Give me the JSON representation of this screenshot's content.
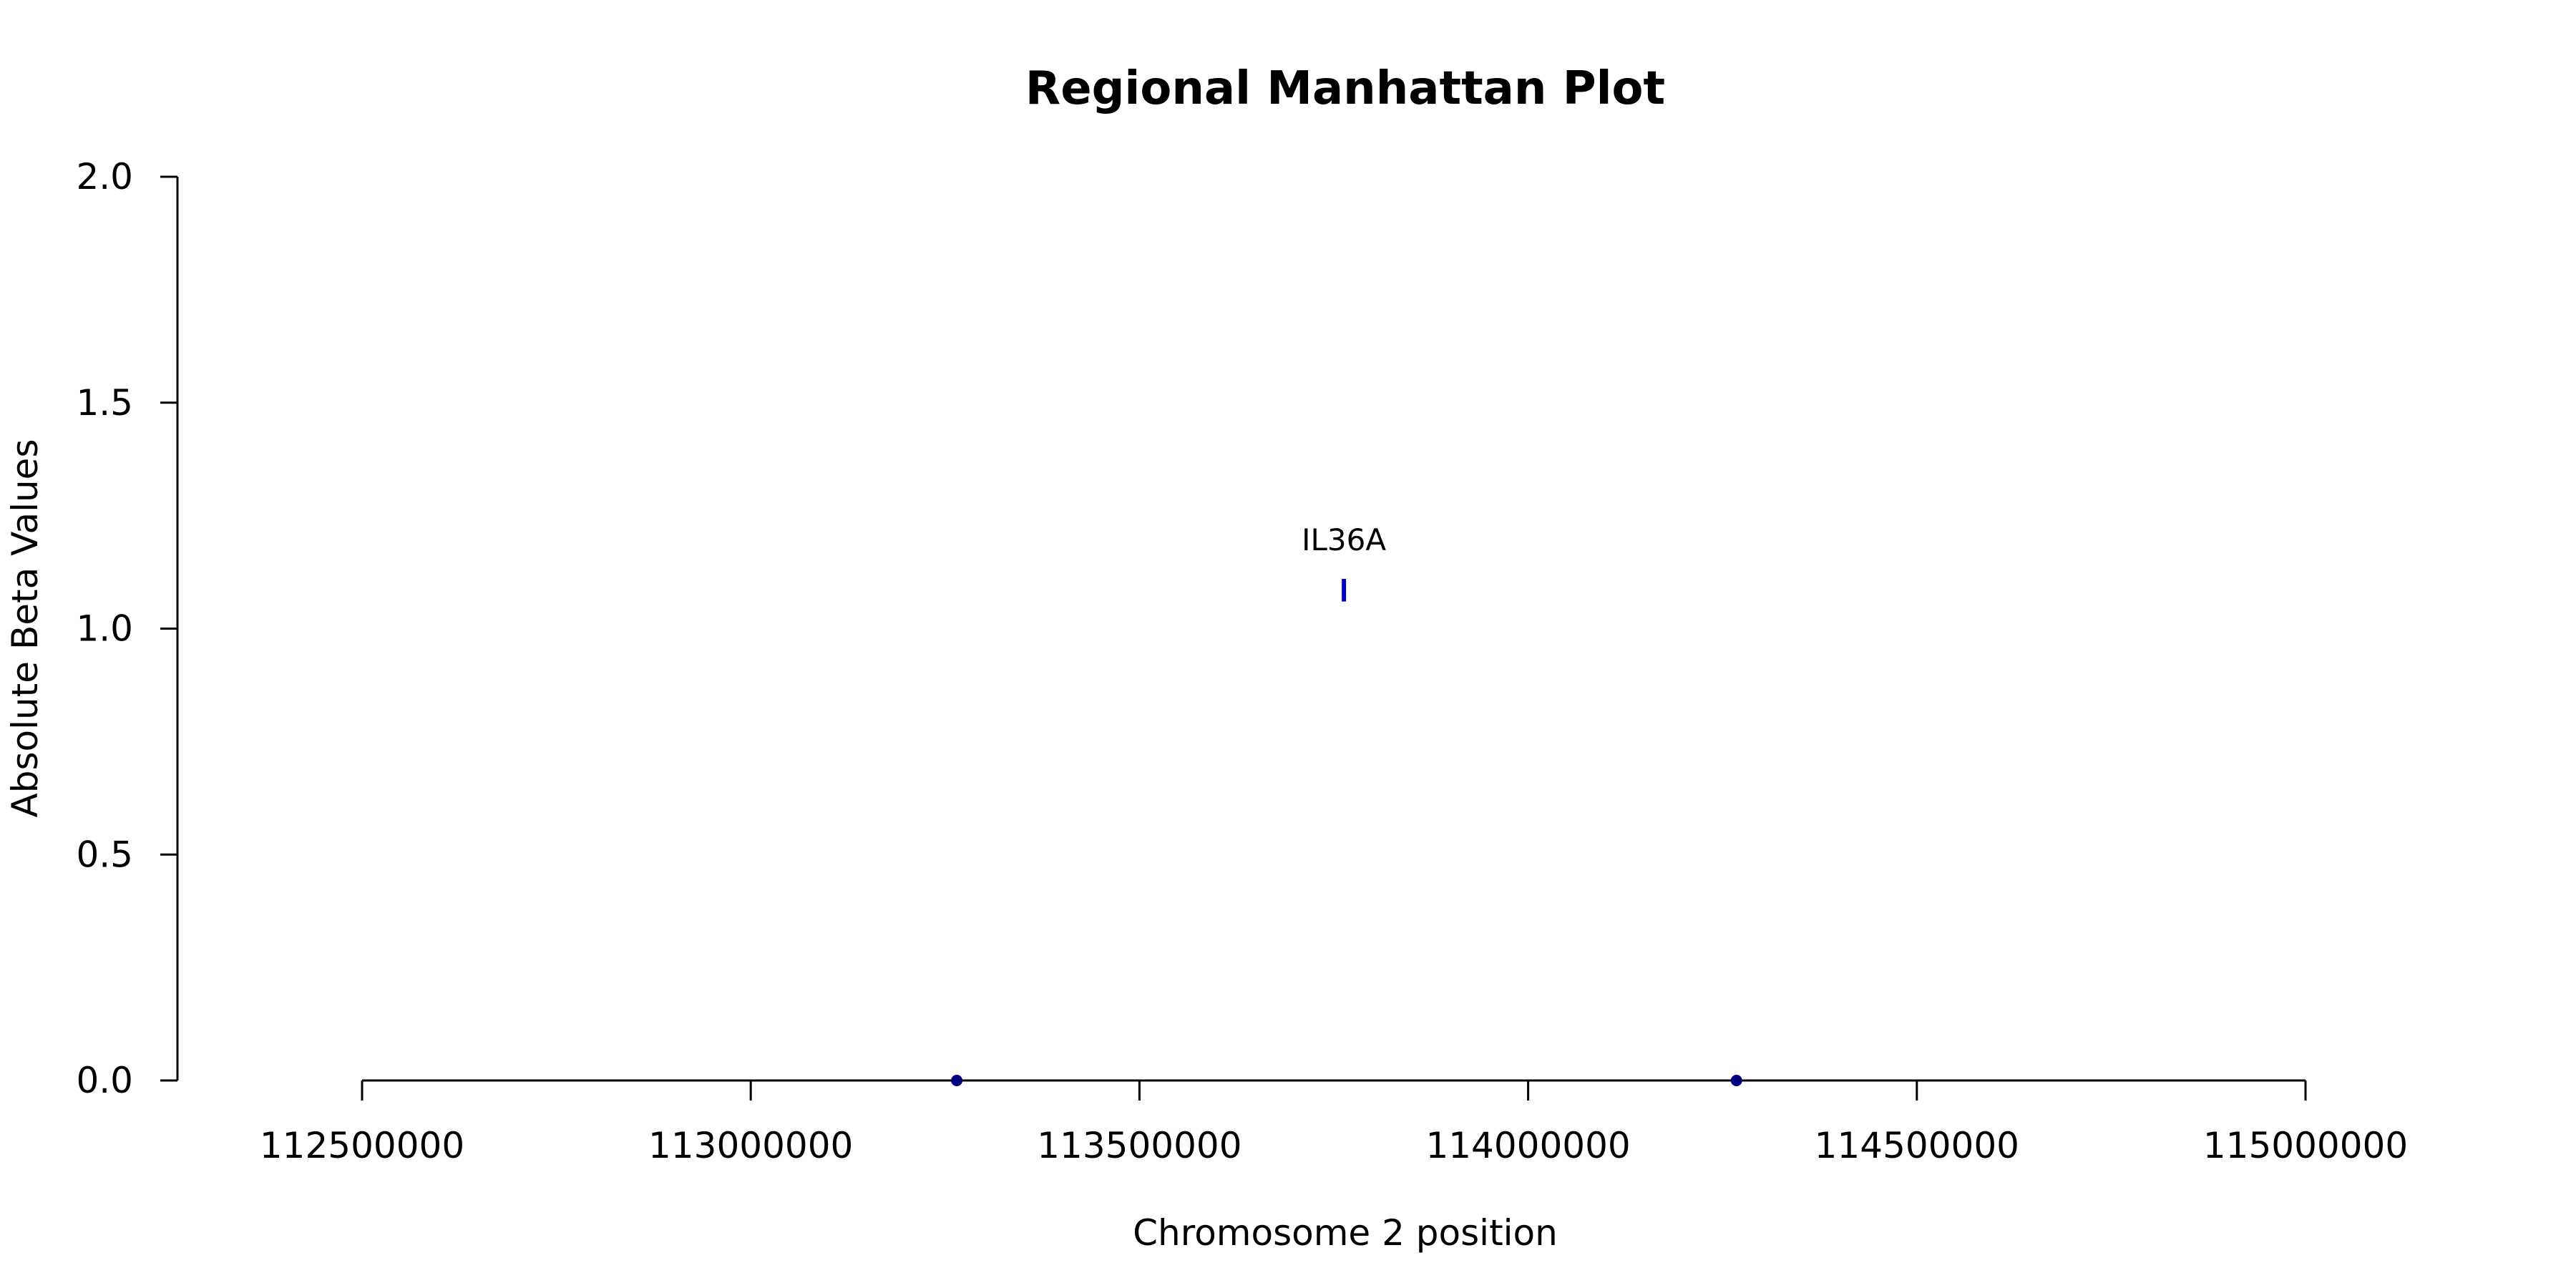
{
  "chart_data": {
    "type": "scatter",
    "title": "Regional Manhattan Plot",
    "xlabel": "Chromosome 2 position",
    "ylabel": "Absolute Beta Values",
    "xlim": [
      112500000,
      115000000
    ],
    "ylim": [
      0,
      2
    ],
    "x_ticks": [
      112500000,
      113000000,
      113500000,
      114000000,
      114500000,
      115000000
    ],
    "x_tick_labels": [
      "112500000",
      "113000000",
      "113500000",
      "114000000",
      "114500000",
      "115000000"
    ],
    "y_ticks": [
      0,
      0.5,
      1,
      1.5,
      2
    ],
    "y_tick_labels": [
      "0.0",
      "0.5",
      "1.0",
      "1.5",
      "2.0"
    ],
    "grid": false,
    "points": [
      {
        "x": 113265000,
        "y": 0.0,
        "color": "#00007f"
      },
      {
        "x": 114268000,
        "y": 0.0,
        "color": "#00007f"
      }
    ],
    "gene_markers": [
      {
        "label": "IL36A",
        "x": 113763000,
        "y_low": 1.06,
        "y_high": 1.11,
        "color": "#0000cc"
      }
    ]
  }
}
